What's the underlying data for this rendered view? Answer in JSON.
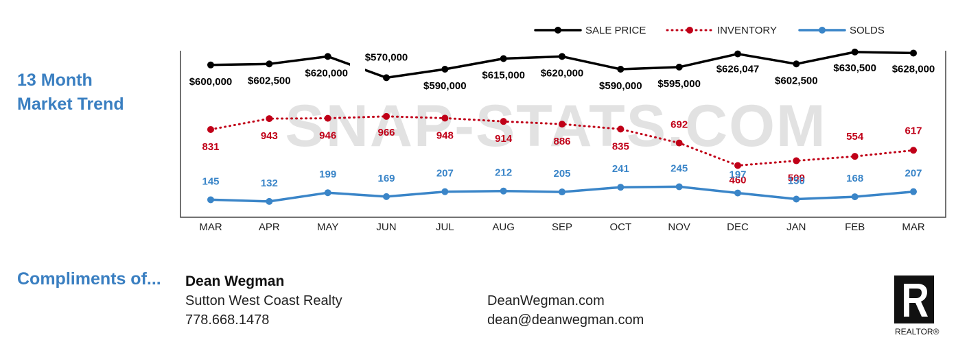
{
  "heading": {
    "line1": "13 Month",
    "line2": "Market Trend"
  },
  "watermark": "SNAP-STATS.COM",
  "footer": {
    "compliments": "Compliments of...",
    "name": "Dean Wegman",
    "company": "Sutton West Coast Realty",
    "phone": "778.668.1478",
    "website": "DeanWegman.com",
    "email": "dean@deanwegman.com",
    "logo_text": "REALTOR®"
  },
  "colors": {
    "sale_price": "#000000",
    "inventory": "#c00018",
    "solds": "#3a85c8",
    "heading": "#3a7fc1"
  },
  "chart_data": {
    "type": "line",
    "categories": [
      "MAR",
      "APR",
      "MAY",
      "JUN",
      "JUL",
      "AUG",
      "SEP",
      "OCT",
      "NOV",
      "DEC",
      "JAN",
      "FEB",
      "MAR"
    ],
    "legend_position": "top-right",
    "grid": false,
    "series": [
      {
        "name": "SALE PRICE",
        "style": "solid",
        "color": "#000000",
        "values": [
          600000,
          602500,
          620000,
          570000,
          590000,
          615000,
          620000,
          590000,
          595000,
          626047,
          602500,
          630500,
          628000
        ],
        "labels": [
          "$600,000",
          "$602,500",
          "$620,000",
          "$570,000",
          "$590,000",
          "$615,000",
          "$620,000",
          "$590,000",
          "$595,000",
          "$626,047",
          "$602,500",
          "$630,500",
          "$628,000"
        ]
      },
      {
        "name": "INVENTORY",
        "style": "dotted",
        "color": "#c00018",
        "values": [
          831,
          943,
          946,
          966,
          948,
          914,
          886,
          835,
          692,
          460,
          509,
          554,
          617
        ],
        "labels": [
          "831",
          "943",
          "946",
          "966",
          "948",
          "914",
          "886",
          "835",
          "692",
          "460",
          "509",
          "554",
          "617"
        ]
      },
      {
        "name": "SOLDS",
        "style": "solid",
        "color": "#3a85c8",
        "values": [
          145,
          132,
          199,
          169,
          207,
          212,
          205,
          241,
          245,
          197,
          150,
          168,
          207
        ],
        "labels": [
          "145",
          "132",
          "199",
          "169",
          "207",
          "212",
          "205",
          "241",
          "245",
          "197",
          "150",
          "168",
          "207"
        ]
      }
    ]
  }
}
